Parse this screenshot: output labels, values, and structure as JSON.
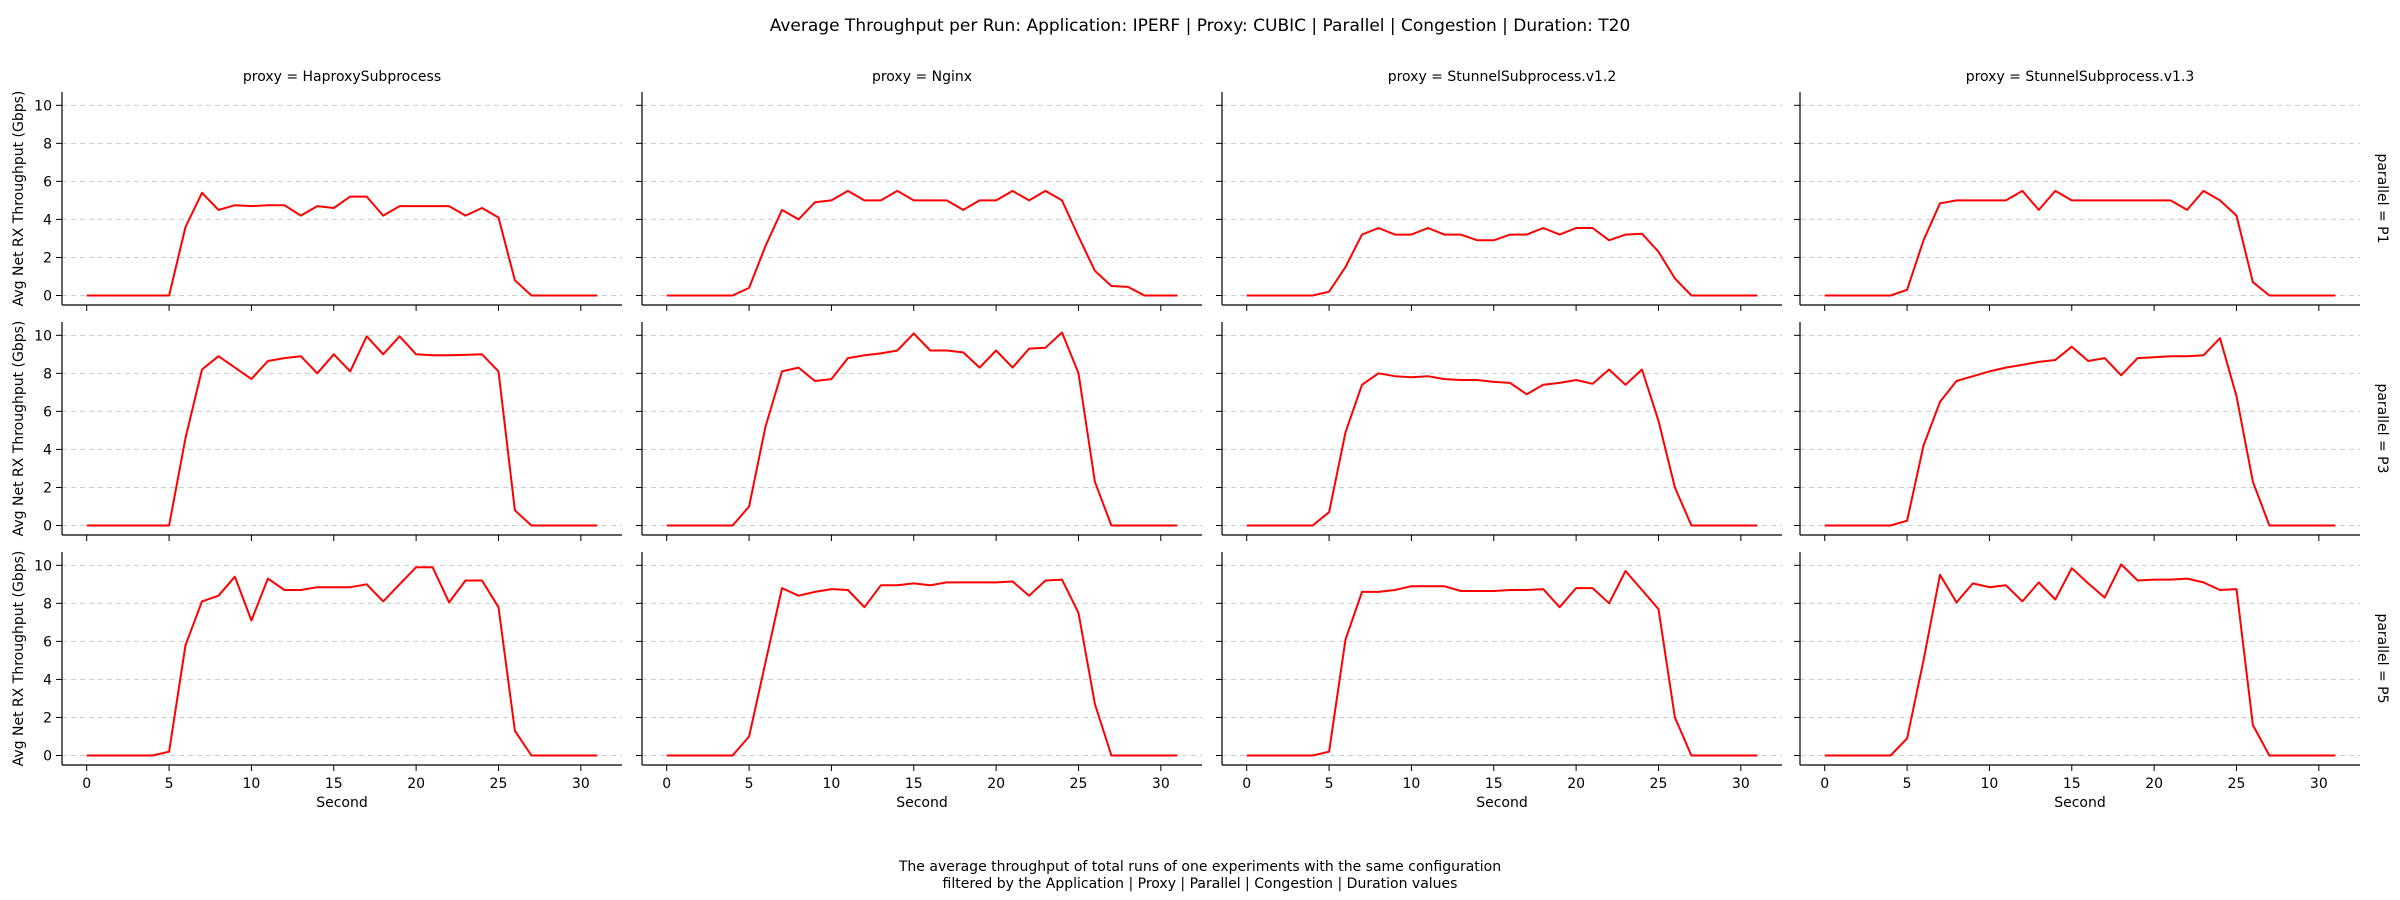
{
  "title": "Average Throughput per Run: Application: IPERF | Proxy: CUBIC | Parallel | Congestion | Duration: T20",
  "caption": [
    "The average throughput of total runs of one experiments with the same configuration",
    "filtered by the Application | Proxy | Parallel | Congestion | Duration values"
  ],
  "colors": {
    "line": "#ff0000",
    "grid": "#cccccc",
    "axis": "#000000"
  },
  "chart_data": {
    "type": "line",
    "layout": "facet grid, 3 rows x 4 columns",
    "xlabel": "Second",
    "ylabel": "Avg Net RX Throughput (Gbps)",
    "xlim": [
      -1.5,
      32.5
    ],
    "ylim": [
      -0.5,
      10.7
    ],
    "xticks": [
      0,
      5,
      10,
      15,
      20,
      25,
      30
    ],
    "yticks": [
      0,
      2,
      4,
      6,
      8,
      10
    ],
    "grid": "horizontal dashed",
    "x": [
      0,
      1,
      2,
      3,
      4,
      5,
      6,
      7,
      8,
      9,
      10,
      11,
      12,
      13,
      14,
      15,
      16,
      17,
      18,
      19,
      20,
      21,
      22,
      23,
      24,
      25,
      26,
      27,
      28,
      29,
      30,
      31
    ],
    "columns": [
      "proxy = HaproxySubprocess",
      "proxy = Nginx",
      "proxy = StunnelSubprocess.v1.2",
      "proxy = StunnelSubprocess.v1.3"
    ],
    "rows": [
      "parallel = P1",
      "parallel = P3",
      "parallel = P5"
    ],
    "panels": [
      [
        [
          0,
          0,
          0,
          0,
          0,
          0,
          3.6,
          5.4,
          4.5,
          4.75,
          4.7,
          4.75,
          4.75,
          4.2,
          4.7,
          4.6,
          5.2,
          5.2,
          4.2,
          4.7,
          4.7,
          4.7,
          4.7,
          4.2,
          4.6,
          4.1,
          0.8,
          0,
          0,
          0,
          0,
          0
        ],
        [
          0,
          0,
          0,
          0,
          0,
          0.4,
          2.6,
          4.5,
          4.0,
          4.9,
          5.0,
          5.5,
          5.0,
          5.0,
          5.5,
          5.0,
          5.0,
          5.0,
          4.5,
          5.0,
          5.0,
          5.5,
          5.0,
          5.5,
          5.0,
          3.1,
          1.3,
          0.5,
          0.45,
          0,
          0,
          0
        ],
        [
          0,
          0,
          0,
          0,
          0,
          0.2,
          1.5,
          3.2,
          3.55,
          3.2,
          3.2,
          3.55,
          3.2,
          3.2,
          2.9,
          2.9,
          3.2,
          3.2,
          3.55,
          3.2,
          3.55,
          3.55,
          2.9,
          3.2,
          3.25,
          2.3,
          0.9,
          0,
          0,
          0,
          0,
          0
        ],
        [
          0,
          0,
          0,
          0,
          0,
          0.3,
          2.9,
          4.85,
          5.0,
          5.0,
          5.0,
          5.0,
          5.5,
          4.5,
          5.5,
          5.0,
          5.0,
          5.0,
          5.0,
          5.0,
          5.0,
          5.0,
          4.5,
          5.5,
          5.0,
          4.2,
          0.7,
          0,
          0,
          0,
          0,
          0
        ]
      ],
      [
        [
          0,
          0,
          0,
          0,
          0,
          0,
          4.6,
          8.2,
          8.9,
          8.3,
          7.7,
          8.65,
          8.8,
          8.9,
          8.0,
          9.0,
          8.1,
          9.95,
          9.0,
          9.95,
          9.0,
          8.95,
          8.95,
          8.97,
          9.0,
          8.1,
          0.8,
          0,
          0,
          0,
          0,
          0
        ],
        [
          0,
          0,
          0,
          0,
          0,
          1.0,
          5.2,
          8.1,
          8.3,
          7.6,
          7.7,
          8.8,
          8.95,
          9.05,
          9.2,
          10.1,
          9.2,
          9.2,
          9.1,
          8.3,
          9.2,
          8.3,
          9.3,
          9.35,
          10.15,
          8.0,
          2.3,
          0,
          0,
          0,
          0,
          0
        ],
        [
          0,
          0,
          0,
          0,
          0,
          0.7,
          4.9,
          7.4,
          8.0,
          7.85,
          7.8,
          7.85,
          7.7,
          7.65,
          7.65,
          7.55,
          7.5,
          6.9,
          7.4,
          7.5,
          7.65,
          7.45,
          8.2,
          7.4,
          8.2,
          5.5,
          2.0,
          0,
          0,
          0,
          0,
          0
        ],
        [
          0,
          0,
          0,
          0,
          0,
          0.25,
          4.2,
          6.5,
          7.6,
          7.85,
          8.1,
          8.3,
          8.45,
          8.6,
          8.7,
          9.4,
          8.65,
          8.8,
          7.9,
          8.8,
          8.85,
          8.9,
          8.9,
          8.95,
          9.85,
          6.8,
          2.3,
          0,
          0,
          0,
          0,
          0
        ]
      ],
      [
        [
          0,
          0,
          0,
          0,
          0,
          0.2,
          5.8,
          8.1,
          8.4,
          9.4,
          7.1,
          9.3,
          8.7,
          8.7,
          8.85,
          8.85,
          8.85,
          9.0,
          8.1,
          9.0,
          9.9,
          9.9,
          8.05,
          9.2,
          9.2,
          7.8,
          1.3,
          0,
          0,
          0,
          0,
          0
        ],
        [
          0,
          0,
          0,
          0,
          0,
          1.0,
          4.9,
          8.8,
          8.4,
          8.6,
          8.75,
          8.7,
          7.8,
          8.95,
          8.95,
          9.05,
          8.95,
          9.1,
          9.1,
          9.1,
          9.1,
          9.15,
          8.4,
          9.2,
          9.25,
          7.5,
          2.7,
          0,
          0,
          0,
          0,
          0
        ],
        [
          0,
          0,
          0,
          0,
          0,
          0.2,
          6.1,
          8.6,
          8.6,
          8.7,
          8.9,
          8.9,
          8.9,
          8.65,
          8.65,
          8.65,
          8.7,
          8.7,
          8.75,
          7.8,
          8.8,
          8.8,
          8.0,
          9.7,
          8.7,
          7.7,
          2.0,
          0,
          0,
          0,
          0,
          0
        ],
        [
          0,
          0,
          0,
          0,
          0,
          0.9,
          5.0,
          9.5,
          8.05,
          9.05,
          8.85,
          8.95,
          8.1,
          9.1,
          8.2,
          9.85,
          9.05,
          8.3,
          10.05,
          9.2,
          9.25,
          9.25,
          9.3,
          9.1,
          8.7,
          8.75,
          1.6,
          0,
          0,
          0,
          0,
          0
        ]
      ]
    ]
  }
}
